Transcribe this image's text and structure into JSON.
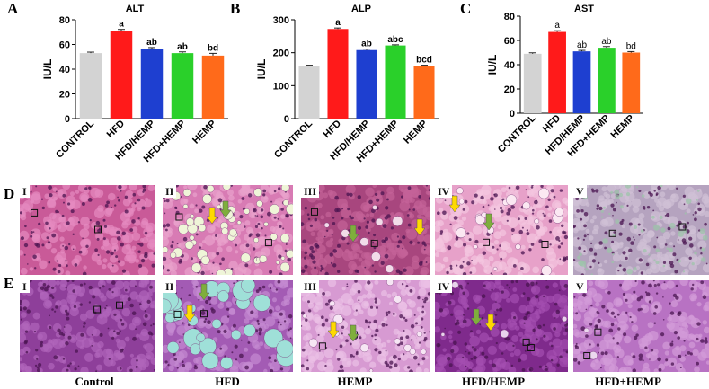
{
  "chart_data": [
    {
      "type": "bar",
      "panel": "A",
      "title": "ALT",
      "ylabel": "IU/L",
      "ylim": [
        0,
        80
      ],
      "yticks": [
        0,
        20,
        40,
        60,
        80
      ],
      "categories": [
        "CONTROL",
        "HFD",
        "HFD/HEMP",
        "HFD+HEMP",
        "HEMP"
      ],
      "values": [
        53,
        71,
        56,
        53,
        51
      ],
      "errors": [
        0.8,
        1.2,
        1.5,
        1.0,
        1.8
      ],
      "labels": [
        "",
        "a",
        "ab",
        "ab",
        "bd"
      ],
      "colors": [
        "#d3d3d3",
        "#ff1a1a",
        "#1e3fd0",
        "#2ad02a",
        "#ff6a1a"
      ]
    },
    {
      "type": "bar",
      "panel": "B",
      "title": "ALP",
      "ylabel": "IU/L",
      "ylim": [
        0,
        300
      ],
      "yticks": [
        0,
        100,
        200,
        300
      ],
      "categories": [
        "CONTROL",
        "HFD",
        "HFD/HEMP",
        "HFD+HEMP",
        "HEMP"
      ],
      "values": [
        160,
        272,
        208,
        222,
        160
      ],
      "errors": [
        2,
        3,
        3,
        2,
        2
      ],
      "labels": [
        "",
        "a",
        "ab",
        "abc",
        "bcd"
      ],
      "colors": [
        "#d3d3d3",
        "#ff1a1a",
        "#1e3fd0",
        "#2ad02a",
        "#ff6a1a"
      ]
    },
    {
      "type": "bar",
      "panel": "C",
      "title": "AST",
      "ylabel": "IU/L",
      "ylim": [
        0,
        80
      ],
      "yticks": [
        0,
        20,
        40,
        60,
        80
      ],
      "categories": [
        "CONTROL",
        "HFD",
        "HFD/HEMP",
        "HFD+HEMP",
        "HEMP"
      ],
      "values": [
        49,
        67,
        51,
        54,
        50
      ],
      "errors": [
        0.8,
        1.0,
        0.8,
        1.0,
        0.8
      ],
      "labels": [
        "",
        "a",
        "ab",
        "ab",
        "bd"
      ],
      "colors": [
        "#d3d3d3",
        "#ff1a1a",
        "#1e3fd0",
        "#2ad02a",
        "#ff6a1a"
      ]
    }
  ],
  "histology": {
    "row_d_letter": "D",
    "row_e_letter": "E",
    "row_d": [
      "I",
      "II",
      "III",
      "IV",
      "V"
    ],
    "row_e": [
      "I",
      "II",
      "III",
      "IV",
      "V"
    ],
    "captions": [
      "Control",
      "HFD",
      "HEMP",
      "HFD/HEMP",
      "HFD+HEMP"
    ]
  }
}
